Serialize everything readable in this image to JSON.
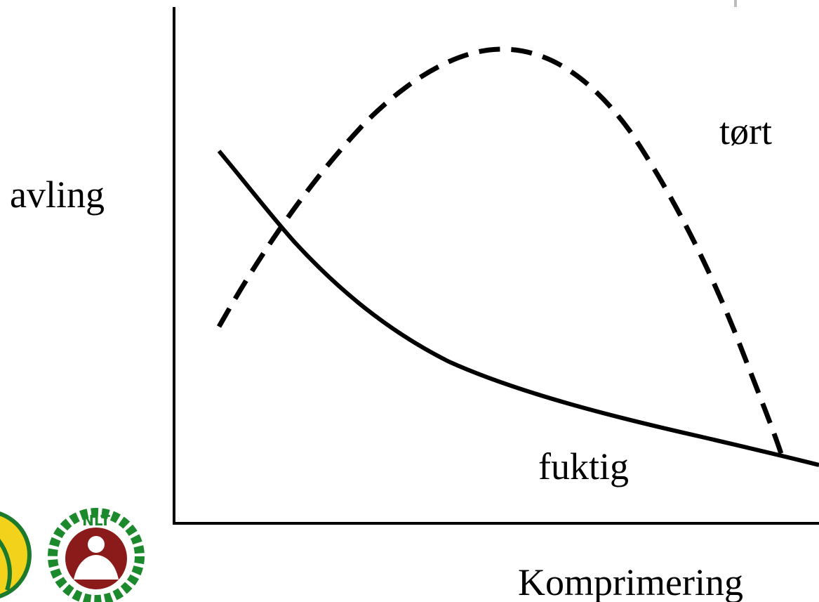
{
  "labels": {
    "y_axis": "avling",
    "x_axis": "Komprimering",
    "dry": "tørt",
    "wet": "fuktig"
  },
  "logo": {
    "text": "NLT"
  }
}
